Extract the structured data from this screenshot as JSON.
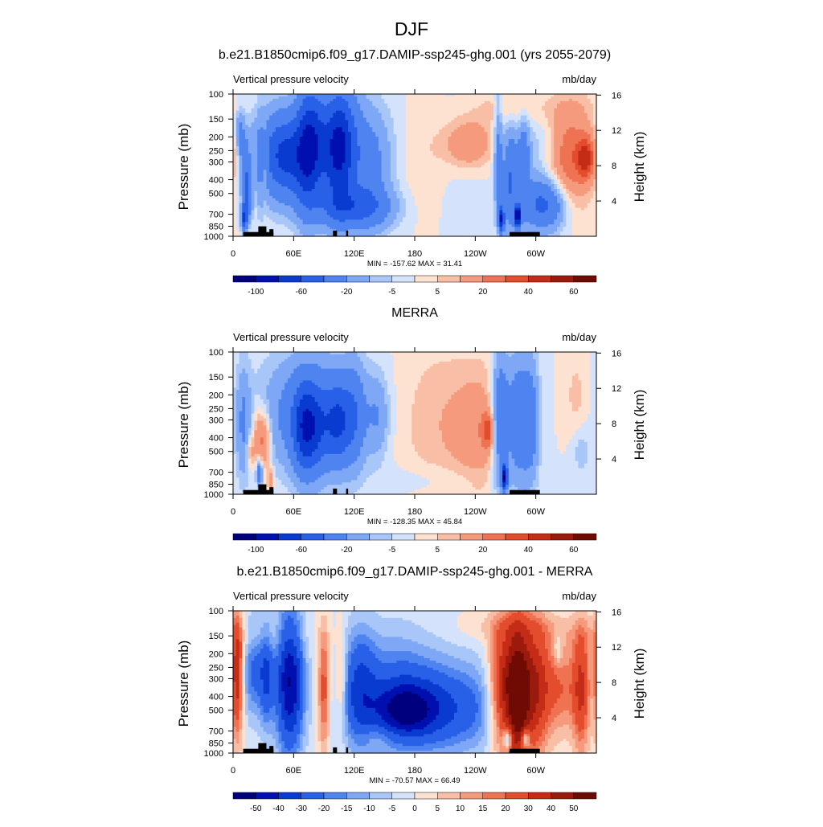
{
  "figure_title": "DJF",
  "colors": {
    "full": [
      "#00007f",
      "#0010b0",
      "#0a3bd0",
      "#2860e8",
      "#4f84f0",
      "#7ea8f5",
      "#a9c6f8",
      "#d4e3fb",
      "#fde2d2",
      "#f8bfa6",
      "#f59a7c",
      "#ef7352",
      "#e34c2d",
      "#c52c17",
      "#9c1a0d",
      "#700b04"
    ],
    "diff": [
      "#00007f",
      "#0010b0",
      "#0a3bd0",
      "#2860e8",
      "#4f84f0",
      "#7ea8f5",
      "#a9c6f8",
      "#d4e3fb",
      "#fde2d2",
      "#f8bfa6",
      "#f59a7c",
      "#ef7352",
      "#e34c2d",
      "#c52c17",
      "#9c1a0d",
      "#700b04"
    ]
  },
  "chart_data": [
    {
      "type": "heatmap",
      "title": "b.e21.B1850cmip6.f09_g17.DAMIP-ssp245-ghg.001 (yrs 2055-2079)",
      "left_label": "Vertical pressure velocity",
      "right_label": "mb/day",
      "ylabel": "Pressure (mb)",
      "ylabel_right": "Height (km)",
      "x_ticks": [
        "0",
        "60E",
        "120E",
        "180",
        "120W",
        "60W"
      ],
      "y_ticks": [
        "100",
        "150",
        "200",
        "250",
        "300",
        "400",
        "500",
        "700",
        "850",
        "1000"
      ],
      "y_right_ticks": [
        "16",
        "12",
        "8",
        "4"
      ],
      "stats": "MIN = -157.62  MAX =  31.41",
      "colorbar_labels": [
        "-100",
        "-60",
        "-20",
        "-5",
        "5",
        "20",
        "40",
        "60"
      ],
      "palette": "full",
      "min": -157.62,
      "max": 31.41,
      "blobs": [
        [
          5,
          22,
          3,
          10,
          -8
        ],
        [
          8,
          30,
          3,
          12,
          -18
        ],
        [
          12,
          55,
          3,
          15,
          -30
        ],
        [
          14,
          75,
          3,
          10,
          -40
        ],
        [
          11,
          88,
          2,
          6,
          -60
        ],
        [
          30,
          45,
          4,
          16,
          16
        ],
        [
          27,
          50,
          1.2,
          25,
          -18
        ],
        [
          43,
          42,
          18,
          22,
          -40
        ],
        [
          55,
          45,
          12,
          20,
          -32
        ],
        [
          72,
          40,
          8,
          30,
          -55
        ],
        [
          82,
          35,
          8,
          28,
          -45
        ],
        [
          102,
          40,
          10,
          28,
          -55
        ],
        [
          110,
          35,
          12,
          28,
          -42
        ],
        [
          120,
          80,
          25,
          10,
          -40
        ],
        [
          135,
          50,
          12,
          28,
          -25
        ],
        [
          155,
          45,
          12,
          30,
          -5
        ],
        [
          190,
          45,
          18,
          32,
          7
        ],
        [
          233,
          35,
          17,
          12,
          22
        ],
        [
          212,
          40,
          30,
          40,
          -4
        ],
        [
          263,
          45,
          3,
          30,
          -28
        ],
        [
          266,
          88,
          2,
          6,
          -80
        ],
        [
          275,
          60,
          5,
          25,
          -38
        ],
        [
          282,
          86,
          2,
          5,
          -100
        ],
        [
          288,
          50,
          4,
          22,
          -30
        ],
        [
          308,
          78,
          15,
          12,
          -42
        ],
        [
          305,
          40,
          18,
          35,
          -10
        ],
        [
          333,
          45,
          16,
          24,
          30
        ],
        [
          350,
          45,
          6,
          10,
          35
        ],
        [
          290,
          10,
          40,
          10,
          10
        ]
      ],
      "bg": 0
    },
    {
      "type": "heatmap",
      "title": "MERRA",
      "left_label": "Vertical pressure velocity",
      "right_label": "mb/day",
      "ylabel": "Pressure (mb)",
      "ylabel_right": "Height (km)",
      "x_ticks": [
        "0",
        "60E",
        "120E",
        "180",
        "120W",
        "60W"
      ],
      "y_ticks": [
        "100",
        "150",
        "200",
        "250",
        "300",
        "400",
        "500",
        "700",
        "850",
        "1000"
      ],
      "y_right_ticks": [
        "16",
        "12",
        "8",
        "4"
      ],
      "stats": "MIN = -128.35  MAX =  45.84",
      "colorbar_labels": [
        "-100",
        "-60",
        "-20",
        "-5",
        "5",
        "20",
        "40",
        "60"
      ],
      "palette": "full",
      "min": -128.35,
      "max": 45.84,
      "blobs": [
        [
          10,
          50,
          5,
          28,
          -20
        ],
        [
          17,
          70,
          3,
          8,
          16
        ],
        [
          25,
          60,
          4,
          15,
          20
        ],
        [
          32,
          62,
          4,
          14,
          22
        ],
        [
          26,
          85,
          2,
          6,
          -40
        ],
        [
          37,
          90,
          2,
          6,
          20
        ],
        [
          75,
          40,
          38,
          32,
          -12
        ],
        [
          75,
          45,
          26,
          25,
          -22
        ],
        [
          70,
          55,
          8,
          22,
          -40
        ],
        [
          82,
          55,
          10,
          22,
          -32
        ],
        [
          104,
          50,
          8,
          20,
          -42
        ],
        [
          120,
          45,
          8,
          25,
          -30
        ],
        [
          143,
          45,
          8,
          20,
          -18
        ],
        [
          200,
          50,
          25,
          40,
          8
        ],
        [
          245,
          55,
          20,
          30,
          16
        ],
        [
          253,
          55,
          4,
          8,
          30
        ],
        [
          265,
          48,
          6,
          32,
          -42
        ],
        [
          269,
          88,
          2,
          6,
          -90
        ],
        [
          282,
          48,
          7,
          30,
          -36
        ],
        [
          295,
          48,
          6,
          30,
          -30
        ],
        [
          340,
          30,
          8,
          20,
          7
        ],
        [
          345,
          70,
          6,
          12,
          -8
        ],
        [
          200,
          90,
          40,
          8,
          -5
        ]
      ],
      "bg": 0
    },
    {
      "type": "heatmap",
      "title": "b.e21.B1850cmip6.f09_g17.DAMIP-ssp245-ghg.001 - MERRA",
      "left_label": "Vertical pressure velocity",
      "right_label": "mb/day",
      "ylabel": "Pressure (mb)",
      "ylabel_right": "Height (km)",
      "x_ticks": [
        "0",
        "60E",
        "120E",
        "180",
        "120W",
        "60W"
      ],
      "y_ticks": [
        "100",
        "150",
        "200",
        "250",
        "300",
        "400",
        "500",
        "700",
        "850",
        "1000"
      ],
      "y_right_ticks": [
        "16",
        "12",
        "8",
        "4"
      ],
      "stats": "MIN = -70.57  MAX =  66.49",
      "colorbar_labels": [
        "-50",
        "-40",
        "-30",
        "-20",
        "-15",
        "-10",
        "-5",
        "0",
        "5",
        "10",
        "15",
        "20",
        "30",
        "40",
        "50"
      ],
      "palette": "diff",
      "min": -70.57,
      "max": 66.49,
      "blobs": [
        [
          4,
          45,
          4,
          30,
          38
        ],
        [
          20,
          40,
          8,
          25,
          -22
        ],
        [
          33,
          45,
          5,
          25,
          -26
        ],
        [
          56,
          50,
          10,
          35,
          -50
        ],
        [
          90,
          55,
          4,
          30,
          25
        ],
        [
          107,
          50,
          4,
          25,
          15
        ],
        [
          125,
          55,
          12,
          30,
          -25
        ],
        [
          160,
          55,
          28,
          30,
          -15
        ],
        [
          205,
          70,
          40,
          20,
          -22
        ],
        [
          210,
          60,
          60,
          30,
          -8
        ],
        [
          170,
          70,
          20,
          12,
          -30
        ],
        [
          140,
          88,
          12,
          5,
          6
        ],
        [
          268,
          55,
          10,
          30,
          42
        ],
        [
          283,
          60,
          8,
          35,
          55
        ],
        [
          300,
          55,
          10,
          30,
          40
        ],
        [
          325,
          55,
          12,
          22,
          20
        ],
        [
          322,
          27,
          3,
          8,
          -12
        ],
        [
          345,
          55,
          6,
          30,
          30
        ],
        [
          280,
          12,
          40,
          8,
          8
        ],
        [
          20,
          20,
          40,
          10,
          6
        ],
        [
          272,
          90,
          3,
          5,
          -30
        ],
        [
          290,
          90,
          3,
          5,
          -30
        ]
      ],
      "bg": 0
    }
  ]
}
